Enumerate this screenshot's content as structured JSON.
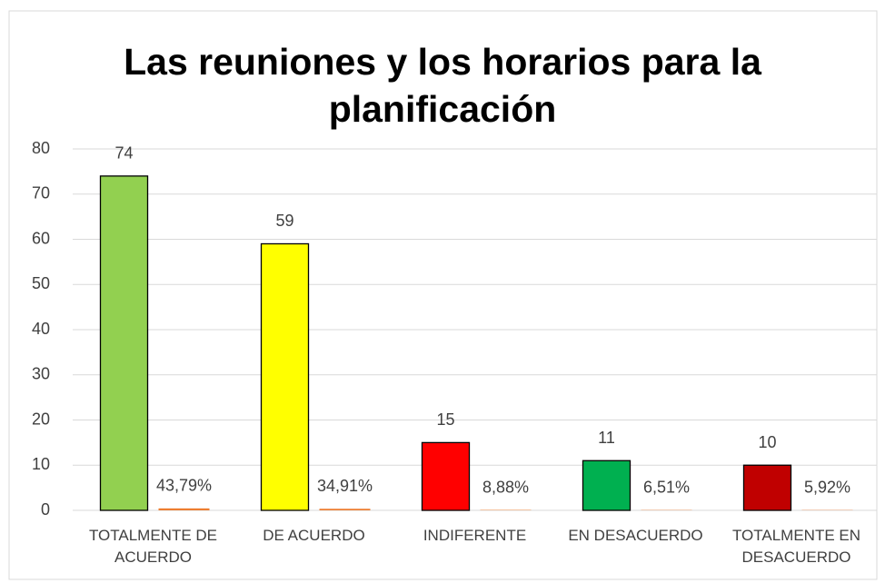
{
  "chart_data": {
    "type": "bar",
    "title": "Las reuniones y los horarios para la planificación",
    "categories": [
      "TOTALMENTE DE ACUERDO",
      "DE ACUERDO",
      "INDIFERENTE",
      "EN DESACUERDO",
      "TOTALMENTE EN DESACUERDO"
    ],
    "series": [
      {
        "colors": [
          "#92d050",
          "#ffff00",
          "#ff0000",
          "#00b050",
          "#c00000"
        ],
        "values": [
          74,
          59,
          15,
          11,
          10
        ]
      },
      {
        "color": "#ed7d31",
        "values": [
          0.4379,
          0.3491,
          0.0888,
          0.0651,
          0.0592
        ],
        "value_labels": [
          "43,79%",
          "34,91%",
          "8,88%",
          "6,51%",
          "5,92%"
        ]
      }
    ],
    "ylim": [
      0,
      80
    ],
    "yticks": [
      0,
      10,
      20,
      30,
      40,
      50,
      60,
      70,
      80
    ],
    "grid": true
  }
}
